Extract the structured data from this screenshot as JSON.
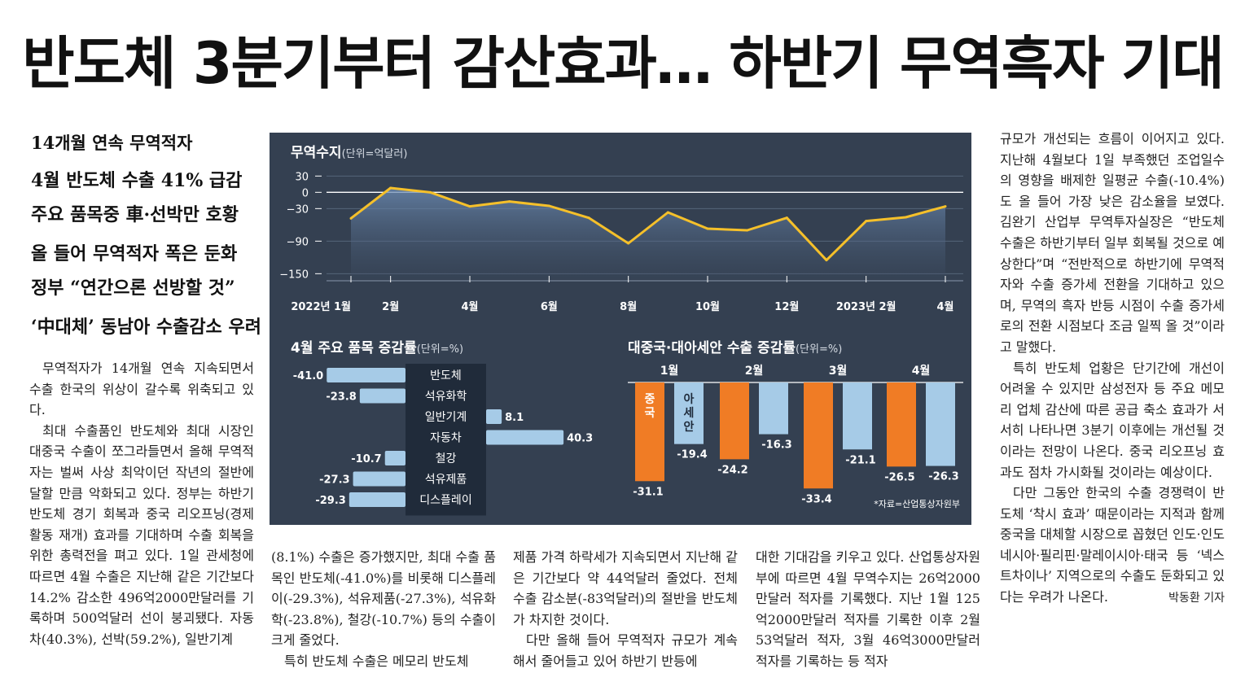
{
  "headline": "반도체 3분기부터 감산효과… 하반기 무역흑자 기대",
  "subheads": [
    "14개월 연속 무역적자",
    "4월 반도체 수출 41% 급감",
    "주요 품목중 車·선박만 호황",
    "올 들어 무역적자 폭은 둔화",
    "정부 “연간으론 선방할 것”",
    "‘中대체’ 동남아 수출감소 우려"
  ],
  "col1": [
    "무역적자가 14개월 연속 지속되면서 수출 한국의 위상이 갈수록 위축되고 있다.",
    "최대 수출품인 반도체와 최대 시장인 대중국 수출이 쪼그라들면서 올해 무역적자는 벌써 사상 최악이던 작년의 절반에 달할 만큼 악화되고 있다. 정부는 하반기 반도체 경기 회복과 중국 리오프닝(경제활동 재개) 효과를 기대하며 수출 회복을 위한 총력전을 펴고 있다. 1일 관세청에 따르면 4월 수출은 지난해 같은 기간보다 14.2% 감소한 496억2000만달러를 기록하며 500억달러 선이 붕괴됐다. 자동차(40.3%), 선박(59.2%), 일반기계"
  ],
  "col2": [
    "(8.1%) 수출은 증가했지만, 최대 수출 품목인 반도체(-41.0%)를 비롯해 디스플레이(-29.3%), 석유제품(-27.3%), 석유화학(-23.8%), 철강(-10.7%) 등의 수출이 크게 줄었다.",
    "특히 반도체 수출은 메모리 반도체"
  ],
  "col3": [
    "제품 가격 하락세가 지속되면서 지난해 같은 기간보다 약 44억달러 줄었다. 전체 수출 감소분(-83억달러)의 절반을 반도체가 차지한 것이다.",
    "다만 올해 들어 무역적자 규모가 계속해서 줄어들고 있어 하반기 반등에"
  ],
  "col4": [
    "대한 기대감을 키우고 있다. 산업통상자원부에 따르면 4월 무역수지는 26억2000만달러 적자를 기록했다. 지난 1월 125억2000만달러 적자를 기록한 이후 2월 53억달러 적자, 3월 46억3000만달러 적자를 기록하는 등 적자"
  ],
  "col5": [
    "규모가 개선되는 흐름이 이어지고 있다. 지난해 4월보다 1일 부족했던 조업일수의 영향을 배제한 일평균 수출(-10.4%)도 올 들어 가장 낮은 감소율을 보였다. 김완기 산업부 무역투자실장은 “반도체 수출은 하반기부터 일부 회복될 것으로 예상한다”며 “전반적으로 하반기에 무역적자와 수출 증가세 전환을 기대하고 있으며, 무역의 흑자 반등 시점이 수출 증가세로의 전환 시점보다 조금 일찍 올 것”이라고 말했다.",
    "특히 반도체 업황은 단기간에 개선이 어려울 수 있지만 삼성전자 등 주요 메모리 업체 감산에 따른 공급 축소 효과가 서서히 나타나면 3분기 이후에는 개선될 것이라는 전망이 나온다. 중국 리오프닝 효과도 점차 가시화될 것이라는 예상이다.",
    "다만 그동안 한국의 수출 경쟁력이 반도체 ‘착시 효과’ 때문이라는 지적과 함께 중국을 대체할 시장으로 꼽혔던 인도·인도네시아·필리핀·말레이시아·태국 등 ‘넥스트차이나’ 지역으로의 수출도 둔화되고 있다는 우려가 나온다."
  ],
  "byline": "박동환 기자",
  "colors": {
    "panel": "#344051",
    "line": "#f5c02a",
    "blue": "#a6cbe7",
    "orange": "#f07c25",
    "label_box": "#202b3a"
  },
  "chart_data": [
    {
      "type": "area",
      "title": "무역수지",
      "unit": "(단위=억달러)",
      "x": [
        "2022-01",
        "2022-02",
        "2022-03",
        "2022-04",
        "2022-05",
        "2022-06",
        "2022-07",
        "2022-08",
        "2022-09",
        "2022-10",
        "2022-11",
        "2022-12",
        "2023-01",
        "2023-02",
        "2023-03",
        "2023-04"
      ],
      "x_tick_labels": [
        "2022년 1월",
        "2월",
        "4월",
        "6월",
        "8월",
        "10월",
        "12월",
        "2023년 2월",
        "4월"
      ],
      "x_tick_index": [
        0,
        1,
        3,
        5,
        7,
        9,
        11,
        13,
        15
      ],
      "values": [
        -48,
        8,
        0,
        -26,
        -17,
        -25,
        -47,
        -94,
        -37,
        -67,
        -70,
        -47,
        -125,
        -53,
        -46,
        -26
      ],
      "yticks": [
        30,
        0,
        -30,
        -90,
        -150
      ],
      "ylim": [
        -160,
        35
      ]
    },
    {
      "type": "bar",
      "title": "4월 주요 품목 증감률",
      "unit": "(단위=%)",
      "categories": [
        "반도체",
        "석유화학",
        "일반기계",
        "자동차",
        "철강",
        "석유제품",
        "디스플레이"
      ],
      "values": [
        -41.0,
        -23.8,
        8.1,
        40.3,
        -10.7,
        -27.3,
        -29.3
      ],
      "value_labels": [
        "-41.0",
        "-23.8",
        "8.1",
        "40.3",
        "-10.7",
        "-27.3",
        "-29.3"
      ]
    },
    {
      "type": "bar",
      "title": "대중국·대아세안 수출 증감률",
      "unit": "(단위=%)",
      "categories": [
        "1월",
        "2월",
        "3월",
        "4월"
      ],
      "series": [
        {
          "name": "중국",
          "values": [
            -31.1,
            -24.2,
            -33.4,
            -26.5
          ],
          "labels": [
            "-31.1",
            "-24.2",
            "-33.4",
            "-26.5"
          ]
        },
        {
          "name": "아세안",
          "values": [
            -19.4,
            -16.3,
            -21.1,
            -26.3
          ],
          "labels": [
            "-19.4",
            "-16.3",
            "-21.1",
            "-26.3"
          ]
        }
      ],
      "source": "*자료=산업통상자원부"
    }
  ]
}
